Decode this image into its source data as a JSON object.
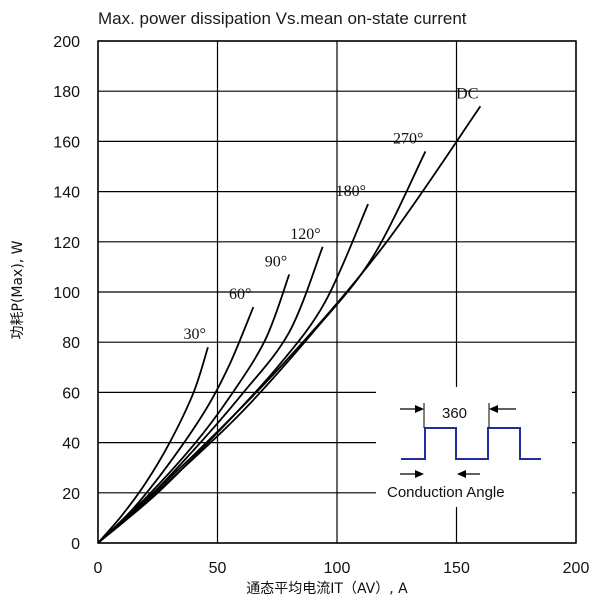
{
  "chart_data": {
    "type": "line",
    "title": "Max. power dissipation Vs.mean on-state current",
    "xlabel": "通态平均电流IT（AV）, A",
    "ylabel": "功耗P(Max), W",
    "xlim": [
      0,
      200
    ],
    "ylim": [
      0,
      200
    ],
    "xticks": [
      "0",
      "50",
      "100",
      "150",
      "200"
    ],
    "yticks": [
      "0",
      "20",
      "40",
      "60",
      "80",
      "100",
      "120",
      "140",
      "160",
      "180",
      "200"
    ],
    "grid": true,
    "series": [
      {
        "name": "30°",
        "x": [
          0,
          10,
          20,
          30,
          40,
          46
        ],
        "y": [
          0,
          11,
          24,
          40,
          60,
          78
        ]
      },
      {
        "name": "60°",
        "x": [
          0,
          15,
          30,
          45,
          55,
          65
        ],
        "y": [
          0,
          14,
          32,
          53,
          71,
          94
        ]
      },
      {
        "name": "90°",
        "x": [
          0,
          20,
          40,
          55,
          70,
          80
        ],
        "y": [
          0,
          18,
          39,
          58,
          81,
          107
        ]
      },
      {
        "name": "120°",
        "x": [
          0,
          20,
          40,
          60,
          80,
          94
        ],
        "y": [
          0,
          17,
          37,
          59,
          84,
          118
        ]
      },
      {
        "name": "180°",
        "x": [
          0,
          25,
          50,
          75,
          95,
          113
        ],
        "y": [
          0,
          20,
          44,
          70,
          96,
          135
        ]
      },
      {
        "name": "270°",
        "x": [
          0,
          30,
          60,
          90,
          115,
          137
        ],
        "y": [
          0,
          25,
          52,
          84,
          114,
          156
        ]
      },
      {
        "name": "DC",
        "x": [
          0,
          40,
          80,
          120,
          160
        ],
        "y": [
          0,
          35,
          74,
          119,
          174
        ]
      }
    ],
    "inset": {
      "period_label": "360",
      "angle_label": "Conduction Angle",
      "waveform_color": "#1f2fa0"
    }
  }
}
